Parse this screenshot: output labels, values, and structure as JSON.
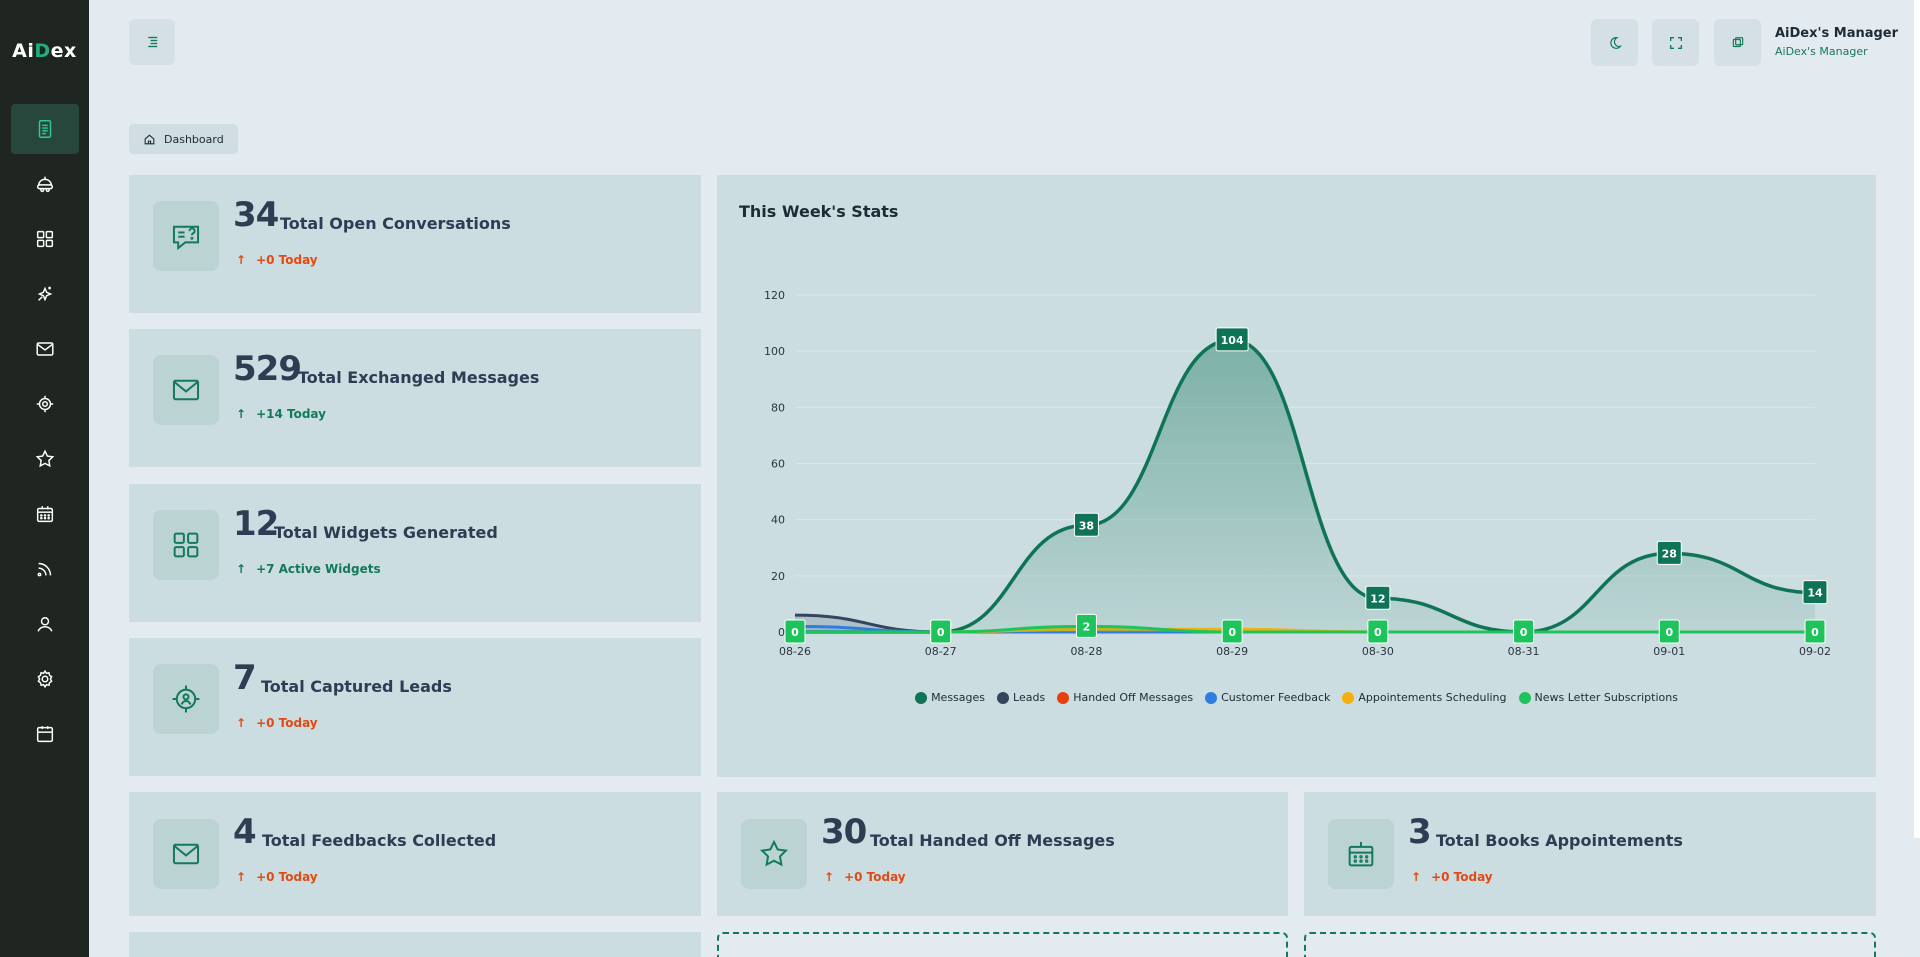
{
  "app": {
    "logo_prefix": "Ai",
    "logo_letter": "D",
    "logo_suffix": "ex"
  },
  "sidebar": {
    "items": [
      {
        "icon": "document-icon",
        "active": true
      },
      {
        "icon": "robot-icon",
        "active": false
      },
      {
        "icon": "grid-icon",
        "active": false
      },
      {
        "icon": "sparkle-icon",
        "active": false
      },
      {
        "icon": "mail-icon",
        "active": false
      },
      {
        "icon": "target-icon",
        "active": false
      },
      {
        "icon": "star-icon",
        "active": false
      },
      {
        "icon": "calendar-icon",
        "active": false
      },
      {
        "icon": "rss-icon",
        "active": false
      },
      {
        "icon": "user-icon",
        "active": false
      },
      {
        "icon": "gear-icon",
        "active": false
      },
      {
        "icon": "archive-icon",
        "active": false
      }
    ]
  },
  "header": {
    "user_name": "AiDex's Manager",
    "user_role": "AiDex's Manager"
  },
  "breadcrumb": {
    "label": "Dashboard"
  },
  "stats": [
    {
      "value": "34",
      "label": "Total Open Conversations",
      "delta": "+0 Today",
      "trend": "red",
      "icon": "chat-question-icon"
    },
    {
      "value": "529",
      "label": "Total Exchanged Messages",
      "delta": "+14 Today",
      "trend": "green",
      "icon": "mail-icon"
    },
    {
      "value": "12",
      "label": "Total Widgets Generated",
      "delta": "+7 Active Widgets",
      "trend": "green",
      "icon": "grid-icon"
    },
    {
      "value": "7",
      "label": "Total Captured Leads",
      "delta": "+0 Today",
      "trend": "red",
      "icon": "target-user-icon"
    },
    {
      "value": "4",
      "label": "Total Feedbacks Collected",
      "delta": "+0 Today",
      "trend": "red",
      "icon": "mail-icon"
    },
    {
      "value": "30",
      "label": "Total Handed Off Messages",
      "delta": "+0 Today",
      "trend": "red",
      "icon": "star-icon"
    },
    {
      "value": "3",
      "label": "Total Books Appointements",
      "delta": "+0 Today",
      "trend": "red",
      "icon": "calendar-icon"
    }
  ],
  "colors": {
    "accent": "#127a59",
    "negative": "#e34a12",
    "sidebar_bg": "#1f2622",
    "card_bg": "#cbdde0"
  },
  "chart_data": {
    "type": "area",
    "title": "This Week's Stats",
    "x": [
      "08-26",
      "08-27",
      "08-28",
      "08-29",
      "08-30",
      "08-31",
      "09-01",
      "09-02"
    ],
    "ylim": [
      0,
      120
    ],
    "yticks": [
      0,
      20,
      40,
      60,
      80,
      100,
      120
    ],
    "grid": true,
    "legend_position": "bottom",
    "series": [
      {
        "name": "Messages",
        "color": "#0f7356",
        "values": [
          0,
          0,
          38,
          104,
          12,
          0,
          28,
          14
        ],
        "labels": true,
        "fill": true
      },
      {
        "name": "Leads",
        "color": "#34455e",
        "values": [
          6,
          0,
          0,
          0,
          0,
          0,
          0,
          0
        ],
        "labels": false
      },
      {
        "name": "Handed Off Messages",
        "color": "#e8400c",
        "values": [
          0,
          0,
          0,
          0,
          0,
          0,
          0,
          0
        ],
        "labels": false
      },
      {
        "name": "Customer Feedback",
        "color": "#2f7de0",
        "values": [
          2,
          0,
          0,
          0,
          0,
          0,
          0,
          0
        ],
        "labels": false
      },
      {
        "name": "Appointements Scheduling",
        "color": "#f5b00c",
        "values": [
          0,
          0,
          1,
          1,
          0,
          0,
          0,
          0
        ],
        "labels": false
      },
      {
        "name": "News Letter Subscriptions",
        "color": "#1ec35c",
        "values": [
          0,
          0,
          2,
          0,
          0,
          0,
          0,
          0
        ],
        "labels": true
      }
    ]
  }
}
